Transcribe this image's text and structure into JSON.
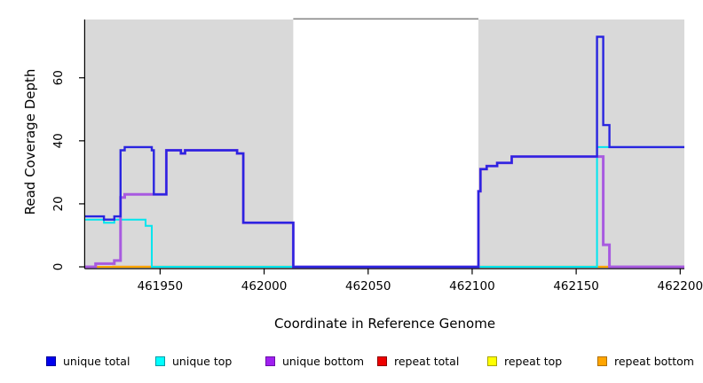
{
  "chart_data": {
    "type": "line",
    "step": "post",
    "xlabel": "Coordinate in Reference Genome",
    "ylabel": "Read Coverage Depth",
    "xlim": [
      461914,
      462202
    ],
    "ylim": [
      0,
      78.5
    ],
    "x_ticks": [
      461950,
      462000,
      462050,
      462100,
      462150,
      462200
    ],
    "x_tick_labels": [
      "461950",
      "462000",
      "462050",
      "462100",
      "462150",
      "462200"
    ],
    "y_ticks": [
      0,
      20,
      40,
      60
    ],
    "y_tick_labels": [
      "0",
      "20",
      "40",
      "60"
    ],
    "grid": false,
    "shade_color": "#d9d9d9",
    "shaded_regions": [
      {
        "from": 461914,
        "to": 462014
      },
      {
        "from": 462103,
        "to": 462202
      }
    ],
    "gap_top_line": {
      "from": 462014,
      "to": 462103,
      "color": "#8a8a8a"
    },
    "series": [
      {
        "name": "repeat total",
        "color": "#ee0000",
        "width": 2,
        "points": [
          [
            461914,
            0
          ],
          [
            462202,
            0
          ]
        ]
      },
      {
        "name": "repeat top",
        "color": "#ffff00",
        "width": 2,
        "points": [
          [
            461914,
            0
          ],
          [
            462202,
            0
          ]
        ]
      },
      {
        "name": "repeat bottom",
        "color": "#ffa500",
        "width": 2,
        "points": [
          [
            461914,
            0
          ],
          [
            462202,
            0
          ]
        ]
      },
      {
        "name": "unique top",
        "color": "#00e5ee",
        "width": 2,
        "points": [
          [
            461914,
            15
          ],
          [
            461923,
            14
          ],
          [
            461928,
            15
          ],
          [
            461943,
            13
          ],
          [
            461946,
            0
          ],
          [
            462160,
            38
          ],
          [
            462202,
            38
          ]
        ]
      },
      {
        "name": "unique bottom",
        "color": "#a85ae0",
        "width": 3,
        "points": [
          [
            461914,
            0
          ],
          [
            461919,
            1
          ],
          [
            461928,
            2
          ],
          [
            461931,
            22
          ],
          [
            461933,
            23
          ],
          [
            461953,
            37
          ],
          [
            461960,
            36
          ],
          [
            461962,
            37
          ],
          [
            461987,
            36
          ],
          [
            461990,
            14
          ],
          [
            462014,
            0
          ],
          [
            462103,
            24
          ],
          [
            462104,
            31
          ],
          [
            462107,
            32
          ],
          [
            462112,
            33
          ],
          [
            462119,
            35
          ],
          [
            462163,
            7
          ],
          [
            462166,
            0
          ],
          [
            462202,
            0
          ]
        ]
      },
      {
        "name": "unique total",
        "color": "#2a25e0",
        "width": 2.4,
        "points": [
          [
            461914,
            16
          ],
          [
            461923,
            15
          ],
          [
            461928,
            16
          ],
          [
            461931,
            37
          ],
          [
            461933,
            38
          ],
          [
            461946,
            37
          ],
          [
            461947,
            23
          ],
          [
            461953,
            37
          ],
          [
            461960,
            36
          ],
          [
            461962,
            37
          ],
          [
            461987,
            36
          ],
          [
            461990,
            14
          ],
          [
            462014,
            0
          ],
          [
            462103,
            24
          ],
          [
            462104,
            31
          ],
          [
            462107,
            32
          ],
          [
            462112,
            33
          ],
          [
            462119,
            35
          ],
          [
            462160,
            73
          ],
          [
            462163,
            45
          ],
          [
            462166,
            38
          ],
          [
            462202,
            38
          ]
        ]
      }
    ],
    "baseline_segments": [
      {
        "from": 461914,
        "to": 461920,
        "color": "#cb3e9b"
      },
      {
        "from": 461927,
        "to": 461946,
        "color": "#ff9015"
      },
      {
        "from": 461946,
        "to": 462014,
        "color": "#7cc47f"
      },
      {
        "from": 462103,
        "to": 462160,
        "color": "#7cc47f"
      },
      {
        "from": 462160,
        "to": 462166,
        "color": "#ff9015"
      },
      {
        "from": 462166,
        "to": 462202,
        "color": "#d84968"
      }
    ]
  },
  "legend": {
    "items": [
      {
        "label": "unique total",
        "color": "#0000ee",
        "border": "#000099"
      },
      {
        "label": "unique top",
        "color": "#00ffff",
        "border": "#009aa6"
      },
      {
        "label": "unique bottom",
        "color": "#a020f0",
        "border": "#6a0fa8"
      },
      {
        "label": "repeat total",
        "color": "#ee0000",
        "border": "#8e0000"
      },
      {
        "label": "repeat top",
        "color": "#ffff00",
        "border": "#a8a400"
      },
      {
        "label": "repeat bottom",
        "color": "#ffa500",
        "border": "#b07000"
      }
    ]
  }
}
